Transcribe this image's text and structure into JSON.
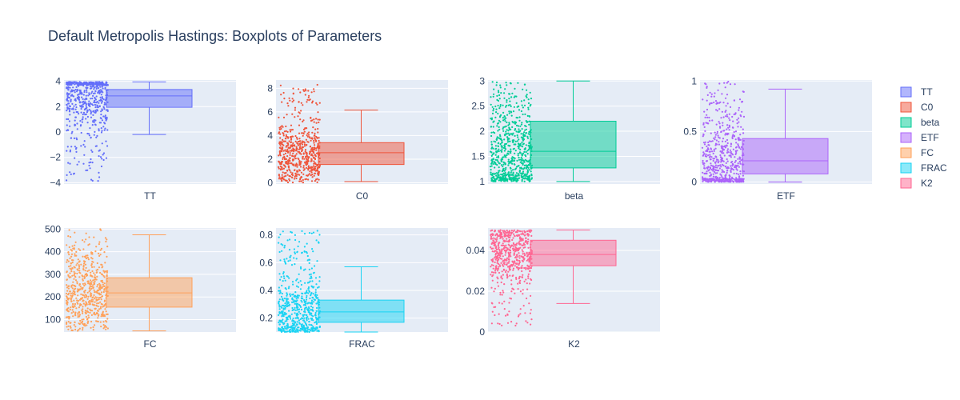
{
  "title": "Default Metropolis Hastings: Boxplots of Parameters",
  "chart_data": [
    {
      "type": "box",
      "name": "TT",
      "color": "#636efa",
      "fill": "rgba(99,110,250,0.5)",
      "ylim": [
        -4.1,
        4.1
      ],
      "yticks": [
        -4,
        -2,
        0,
        2,
        4
      ],
      "yticklabels": [
        "−4",
        "−2",
        "0",
        "2",
        "4"
      ],
      "xlabel": "TT",
      "stats": {
        "min": -0.2,
        "q1": 1.95,
        "median": 2.85,
        "q3": 3.35,
        "max": 3.95
      },
      "points": {
        "count": 600,
        "low": -3.9,
        "high": 3.95,
        "mode": 3.1,
        "spread": 1.4
      }
    },
    {
      "type": "box",
      "name": "C0",
      "color": "#ef553b",
      "fill": "rgba(239,85,59,0.5)",
      "ylim": [
        -0.1,
        8.7
      ],
      "yticks": [
        0,
        2,
        4,
        6,
        8
      ],
      "yticklabels": [
        "0",
        "2",
        "4",
        "6",
        "8"
      ],
      "xlabel": "C0",
      "stats": {
        "min": 0.1,
        "q1": 1.55,
        "median": 2.55,
        "q3": 3.4,
        "max": 6.15
      },
      "points": {
        "count": 600,
        "low": 0.0,
        "high": 8.3,
        "mode": 2.4,
        "spread": 1.3
      }
    },
    {
      "type": "box",
      "name": "beta",
      "color": "#00cc96",
      "fill": "rgba(0,204,150,0.5)",
      "ylim": [
        0.95,
        3.02
      ],
      "yticks": [
        1,
        1.5,
        2,
        2.5,
        3
      ],
      "yticklabels": [
        "1",
        "1.5",
        "2",
        "2.5",
        "3"
      ],
      "xlabel": "beta",
      "stats": {
        "min": 1.0,
        "q1": 1.27,
        "median": 1.6,
        "q3": 2.2,
        "max": 3.0
      },
      "points": {
        "count": 700,
        "low": 1.0,
        "high": 3.0,
        "mode": 1.5,
        "spread": 0.6
      }
    },
    {
      "type": "box",
      "name": "ETF",
      "color": "#ab63fa",
      "fill": "rgba(171,99,250,0.5)",
      "ylim": [
        -0.02,
        1.01
      ],
      "yticks": [
        0,
        0.5,
        1
      ],
      "yticklabels": [
        "0",
        "0.5",
        "1"
      ],
      "xlabel": "ETF",
      "stats": {
        "min": 0.0,
        "q1": 0.08,
        "median": 0.21,
        "q3": 0.43,
        "max": 0.92
      },
      "points": {
        "count": 600,
        "low": 0.0,
        "high": 1.0,
        "mode": 0.12,
        "spread": 0.25
      }
    },
    {
      "type": "box",
      "name": "FC",
      "color": "#ffa15a",
      "fill": "rgba(255,161,90,0.5)",
      "ylim": [
        45,
        505
      ],
      "yticks": [
        100,
        200,
        300,
        400,
        500
      ],
      "yticklabels": [
        "100",
        "200",
        "300",
        "400",
        "500"
      ],
      "xlabel": "FC",
      "stats": {
        "min": 50,
        "q1": 155,
        "median": 218,
        "q3": 285,
        "max": 475
      },
      "points": {
        "count": 600,
        "low": 50,
        "high": 500,
        "mode": 210,
        "spread": 90
      }
    },
    {
      "type": "box",
      "name": "FRAC",
      "color": "#19d3f3",
      "fill": "rgba(25,211,243,0.5)",
      "ylim": [
        0.1,
        0.85
      ],
      "yticks": [
        0.2,
        0.4,
        0.6,
        0.8
      ],
      "yticklabels": [
        "0.2",
        "0.4",
        "0.6",
        "0.8"
      ],
      "xlabel": "FRAC",
      "stats": {
        "min": 0.1,
        "q1": 0.17,
        "median": 0.245,
        "q3": 0.33,
        "max": 0.57
      },
      "points": {
        "count": 600,
        "low": 0.1,
        "high": 0.83,
        "mode": 0.22,
        "spread": 0.12
      }
    },
    {
      "type": "box",
      "name": "K2",
      "color": "#ff6692",
      "fill": "rgba(255,102,146,0.5)",
      "ylim": [
        0,
        0.051
      ],
      "yticks": [
        0,
        0.02,
        0.04
      ],
      "yticklabels": [
        "0",
        "0.02",
        "0.04"
      ],
      "xlabel": "K2",
      "stats": {
        "min": 0.014,
        "q1": 0.0325,
        "median": 0.038,
        "q3": 0.045,
        "max": 0.05
      },
      "points": {
        "count": 600,
        "low": 0.002,
        "high": 0.05,
        "mode": 0.04,
        "spread": 0.008
      }
    }
  ],
  "legend": {
    "items": [
      "TT",
      "C0",
      "beta",
      "ETF",
      "FC",
      "FRAC",
      "K2"
    ],
    "position": "right"
  }
}
